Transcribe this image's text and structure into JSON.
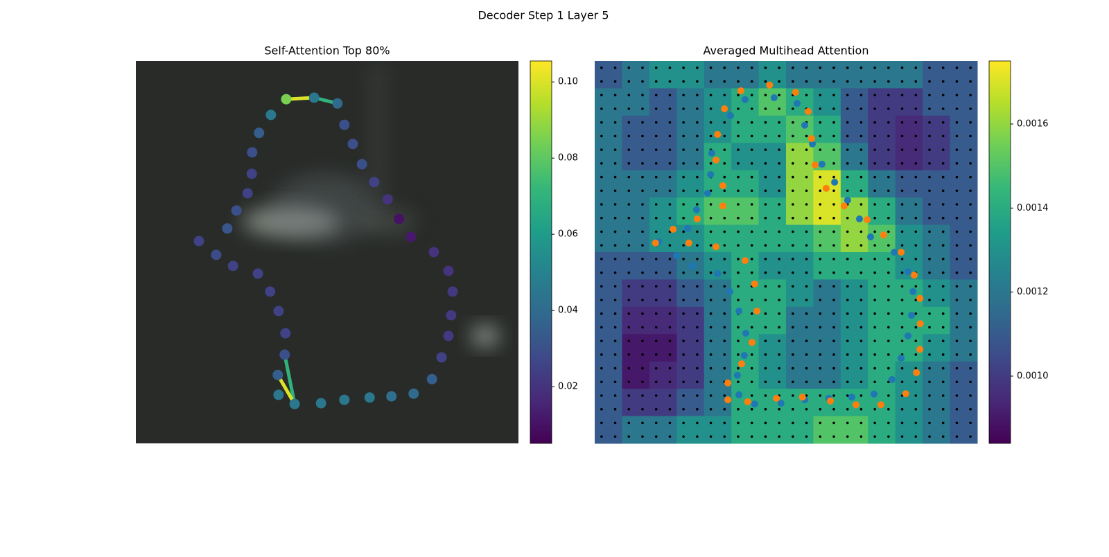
{
  "title": "Decoder Step 1 Layer 5",
  "chart_data": [
    {
      "type": "scatter",
      "title": "Self-Attention Top 80%",
      "xlim": [
        0,
        100
      ],
      "ylim": [
        100,
        0
      ],
      "x": [
        39.3,
        46.6,
        52.7,
        54.5,
        56.7,
        59.1,
        62.3,
        65.8,
        68.8,
        71.9,
        77.9,
        81.7,
        82.8,
        82.4,
        81.7,
        79.9,
        77.4,
        72.6,
        66.8,
        61.1,
        54.5,
        48.4,
        41.5,
        37.3,
        37.1,
        38.9,
        39.1,
        37.3,
        35.1,
        31.9,
        25.4,
        21.0,
        16.5,
        23.9,
        26.3,
        29.2,
        30.3,
        30.4,
        32.2,
        35.3
      ],
      "y": [
        10.0,
        9.6,
        11.1,
        16.7,
        21.7,
        27.0,
        31.7,
        36.2,
        41.3,
        46.0,
        50.0,
        54.9,
        60.3,
        66.5,
        71.9,
        77.5,
        83.2,
        87.0,
        87.7,
        88.0,
        88.6,
        89.5,
        89.7,
        87.3,
        82.1,
        76.8,
        71.2,
        65.4,
        60.3,
        55.6,
        53.6,
        50.7,
        47.1,
        43.8,
        39.1,
        34.6,
        29.5,
        23.9,
        18.8,
        14.1
      ],
      "values": [
        0.085,
        0.045,
        0.04,
        0.03,
        0.03,
        0.03,
        0.025,
        0.02,
        0.01,
        0.012,
        0.02,
        0.02,
        0.022,
        0.022,
        0.022,
        0.025,
        0.035,
        0.04,
        0.042,
        0.045,
        0.045,
        0.045,
        0.045,
        0.045,
        0.035,
        0.03,
        0.025,
        0.025,
        0.025,
        0.025,
        0.025,
        0.028,
        0.025,
        0.032,
        0.03,
        0.025,
        0.025,
        0.03,
        0.035,
        0.045
      ],
      "edges": {
        "from": [
          0,
          1,
          22,
          22
        ],
        "to": [
          1,
          2,
          25,
          24
        ],
        "values": [
          0.1,
          0.07,
          0.07,
          0.1
        ]
      },
      "colorbar": {
        "lim": [
          0.0051,
          0.1055
        ],
        "ticks": [
          0.02,
          0.04,
          0.06,
          0.08,
          {
            "value": 0.1,
            "label": "0.10"
          }
        ]
      }
    },
    {
      "type": "heatmap",
      "title": "Averaged Multihead Attention",
      "xlim": [
        0,
        100
      ],
      "ylim": [
        100,
        0
      ],
      "z": [
        [
          0.0011,
          0.0012,
          0.0013,
          0.0013,
          0.0012,
          0.0012,
          0.0013,
          0.0012,
          0.0012,
          0.0012,
          0.0012,
          0.0012,
          0.0011,
          0.0011
        ],
        [
          0.0012,
          0.0012,
          0.0011,
          0.0012,
          0.0013,
          0.0014,
          0.0015,
          0.0014,
          0.0013,
          0.0011,
          0.001,
          0.001,
          0.0011,
          0.0011
        ],
        [
          0.0012,
          0.0011,
          0.0011,
          0.0012,
          0.0013,
          0.0014,
          0.0014,
          0.0015,
          0.0014,
          0.0011,
          0.001,
          0.00095,
          0.001,
          0.0011
        ],
        [
          0.0012,
          0.0011,
          0.0011,
          0.0012,
          0.0014,
          0.0013,
          0.0013,
          0.0016,
          0.0015,
          0.0012,
          0.001,
          0.00095,
          0.001,
          0.0011
        ],
        [
          0.0012,
          0.0012,
          0.0012,
          0.0013,
          0.0014,
          0.0014,
          0.0013,
          0.0016,
          0.0017,
          0.0014,
          0.0012,
          0.0011,
          0.0011,
          0.0011
        ],
        [
          0.0012,
          0.0012,
          0.0013,
          0.0014,
          0.0015,
          0.0015,
          0.0014,
          0.0016,
          0.0017,
          0.0016,
          0.0014,
          0.0012,
          0.0011,
          0.0011
        ],
        [
          0.0012,
          0.0012,
          0.0013,
          0.0013,
          0.0014,
          0.0014,
          0.0014,
          0.0014,
          0.0015,
          0.0016,
          0.0015,
          0.0013,
          0.0012,
          0.0011
        ],
        [
          0.0011,
          0.0011,
          0.0011,
          0.0012,
          0.0013,
          0.0014,
          0.0013,
          0.0013,
          0.0014,
          0.0014,
          0.0014,
          0.0013,
          0.0012,
          0.0011
        ],
        [
          0.0011,
          0.001,
          0.001,
          0.0011,
          0.0012,
          0.0014,
          0.0014,
          0.0013,
          0.0012,
          0.0013,
          0.0014,
          0.0014,
          0.0013,
          0.0012
        ],
        [
          0.0011,
          0.00095,
          0.00095,
          0.001,
          0.0012,
          0.0014,
          0.0014,
          0.0012,
          0.0012,
          0.0013,
          0.0014,
          0.0014,
          0.0014,
          0.0012
        ],
        [
          0.0011,
          0.0009,
          0.0009,
          0.001,
          0.0012,
          0.0014,
          0.0013,
          0.0012,
          0.0012,
          0.0013,
          0.0014,
          0.0014,
          0.0013,
          0.0012
        ],
        [
          0.0011,
          0.0009,
          0.00095,
          0.001,
          0.0012,
          0.0014,
          0.0013,
          0.0012,
          0.0012,
          0.0013,
          0.0014,
          0.0013,
          0.0012,
          0.0011
        ],
        [
          0.0011,
          0.001,
          0.001,
          0.0011,
          0.0012,
          0.0014,
          0.0014,
          0.0014,
          0.0014,
          0.0014,
          0.0014,
          0.0013,
          0.0012,
          0.0011
        ],
        [
          0.0011,
          0.0012,
          0.0012,
          0.0013,
          0.0013,
          0.0014,
          0.0014,
          0.0014,
          0.0015,
          0.0015,
          0.0014,
          0.0013,
          0.0012,
          0.0011
        ]
      ],
      "series": [
        {
          "color": "#1f77b4",
          "x": [
            39.3,
            35.5,
            30.6,
            30.3,
            29.5,
            26.6,
            24.3,
            16.7,
            21.4,
            25.5,
            32.1,
            35.3,
            37.7,
            39.5,
            39.1,
            37.3,
            37.7,
            41.8,
            48.7,
            54.9,
            61.2,
            67.2,
            73.0,
            77.7,
            80.1,
            81.9,
            82.8,
            83.2,
            81.9,
            78.3,
            72.1,
            69.2,
            66.1,
            62.7,
            59.4,
            56.9,
            54.9,
            52.9,
            46.9
          ],
          "y": [
            10.1,
            14.3,
            24.1,
            29.7,
            34.6,
            38.9,
            43.8,
            47.3,
            50.9,
            53.6,
            55.6,
            60.3,
            65.4,
            71.2,
            77.0,
            82.2,
            87.3,
            89.7,
            89.5,
            88.6,
            88.2,
            87.9,
            87.1,
            83.3,
            77.7,
            71.9,
            66.5,
            60.3,
            55.1,
            50.0,
            46.0,
            41.3,
            36.4,
            31.7,
            27.0,
            21.7,
            16.8,
            11.1,
            9.6
          ]
        },
        {
          "color": "#ff7f0e",
          "x": [
            38.2,
            45.7,
            52.5,
            55.8,
            56.7,
            57.6,
            60.5,
            65.2,
            71.2,
            75.5,
            80.1,
            83.5,
            85.0,
            85.1,
            85.0,
            84.1,
            81.3,
            74.8,
            68.3,
            61.6,
            54.3,
            47.5,
            40.0,
            34.8,
            34.8,
            38.4,
            41.1,
            42.4,
            41.8,
            39.3,
            31.7,
            24.6,
            20.5,
            15.9,
            26.8,
            33.5,
            33.5,
            31.7,
            32.1,
            33.9
          ],
          "y": [
            7.8,
            6.3,
            8.2,
            13.2,
            20.3,
            27.2,
            33.3,
            37.9,
            41.5,
            45.5,
            50.0,
            56.0,
            62.1,
            68.7,
            75.4,
            81.5,
            87.0,
            89.9,
            89.9,
            88.9,
            87.9,
            88.2,
            89.1,
            88.6,
            84.2,
            79.2,
            73.6,
            65.4,
            58.3,
            52.2,
            48.6,
            47.6,
            44.0,
            47.6,
            41.3,
            37.9,
            32.6,
            25.9,
            19.2,
            12.5
          ]
        }
      ],
      "colorbar": {
        "lim": [
          0.00084,
          0.00175
        ],
        "ticks": [
          {
            "value": 0.001,
            "label": "0.0010"
          },
          0.0012,
          0.0014,
          0.0016
        ]
      }
    }
  ]
}
